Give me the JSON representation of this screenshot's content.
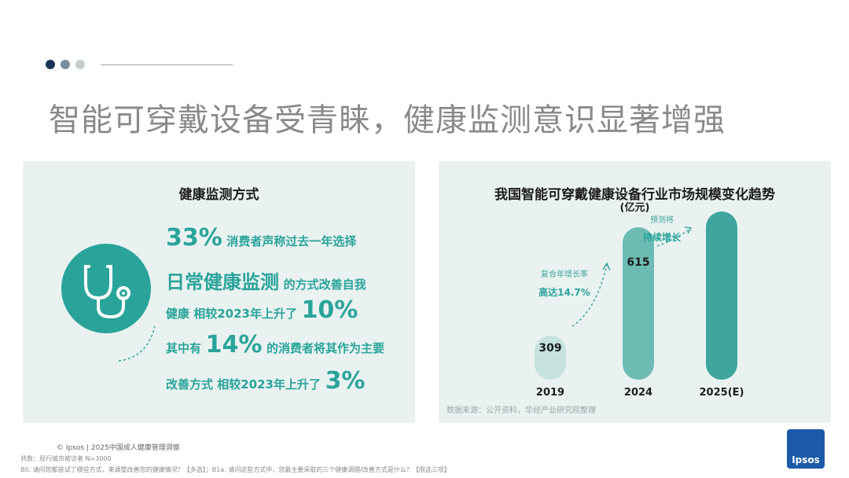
{
  "slide": {
    "title": "智能可穿戴设备受青睐，健康监测意识显著增强",
    "dot_colors": [
      "#1a3554",
      "#7a8c99",
      "#c6ced4"
    ]
  },
  "left_panel": {
    "title": "健康监测方式",
    "icon": "stethoscope-icon",
    "lines": [
      {
        "big": "33%",
        "text": "消费者声称过去一年选择"
      },
      {
        "big": "日常健康监测",
        "text": "的方式改善自我"
      },
      {
        "prefix": "健康 相较2023年上升了",
        "big": "10%"
      },
      {
        "prefix": "其中有",
        "big": "14%",
        "text": "的消费者将其作为主要"
      },
      {
        "prefix": "改善方式 相较2023年上升了",
        "big": "3%"
      }
    ]
  },
  "right_panel": {
    "title": "我国智能可穿戴健康设备行业市场规模变化趋势",
    "unit": "(亿元)",
    "source": "数据来源：公开资料，华经产业研究院整理"
  },
  "chart_data": {
    "type": "bar",
    "title": "我国智能可穿戴健康设备行业市场规模变化趋势",
    "ylabel": "(亿元)",
    "categories": [
      "2019",
      "2024",
      "2025(E)"
    ],
    "values": [
      309,
      615,
      null
    ],
    "value_labels": [
      "309",
      "615",
      ""
    ],
    "bar_colors": [
      "#c6e2df",
      "#6cbcb4",
      "#3ea69c"
    ],
    "annotations": [
      {
        "label": "复合年增长率",
        "value": "高达14.7%"
      },
      {
        "label": "预测将",
        "value": "持续增长"
      }
    ]
  },
  "footer": {
    "copyright": "© Ipsos | 2025中国成人健康管理洞察",
    "note1": "共数：现行城市被访者 N=3000",
    "note2": "B0. 请问您都尝试了哪些方式，来调整改善您的健康情况？【多选】；B1a. 请问这些方式中，您最主要采取的三个健康调理/改善方式是什么？【限选三项】",
    "logo_text": "Ipsos"
  }
}
